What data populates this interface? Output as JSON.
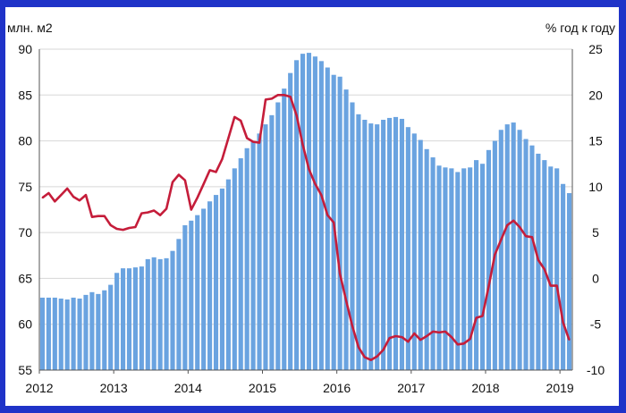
{
  "chart_data": {
    "type": "bar+line",
    "title": "",
    "left_axis_label": "млн. м2",
    "right_axis_label": "% год к году",
    "left_ylim": [
      55,
      90
    ],
    "left_ticks": [
      55,
      60,
      65,
      70,
      75,
      80,
      85,
      90
    ],
    "right_ylim": [
      -10,
      25
    ],
    "right_ticks": [
      -10,
      -5,
      0,
      5,
      10,
      15,
      20,
      25
    ],
    "x_tick_labels": [
      "2012",
      "2013",
      "2014",
      "2015",
      "2016",
      "2017",
      "2018",
      "2019"
    ],
    "grid": "horizontal",
    "legend": "none",
    "series": [
      {
        "type": "bar",
        "axis": "left",
        "color": "#6aa3e0",
        "values": [
          62.9,
          62.9,
          62.9,
          62.8,
          62.7,
          62.9,
          62.8,
          63.2,
          63.5,
          63.3,
          63.7,
          64.3,
          65.6,
          66.1,
          66.1,
          66.2,
          66.3,
          67.1,
          67.3,
          67.1,
          67.2,
          68.0,
          69.3,
          70.8,
          71.3,
          71.9,
          72.6,
          73.4,
          74.1,
          74.8,
          75.8,
          77.0,
          78.1,
          79.2,
          80.0,
          80.8,
          81.8,
          82.8,
          84.2,
          85.7,
          87.4,
          88.8,
          89.5,
          89.6,
          89.2,
          88.7,
          88.0,
          87.2,
          87.0,
          85.6,
          84.2,
          82.9,
          82.3,
          81.9,
          81.8,
          82.3,
          82.5,
          82.6,
          82.4,
          81.5,
          80.8,
          80.1,
          79.1,
          78.2,
          77.3,
          77.1,
          77.0,
          76.6,
          77.0,
          77.1,
          77.9,
          77.5,
          79.0,
          80.0,
          81.2,
          81.8,
          82.0,
          81.2,
          80.2,
          79.5,
          78.6,
          77.9,
          77.2,
          77.0,
          75.3,
          74.3
        ]
      },
      {
        "type": "line",
        "axis": "right",
        "color": "#c51d3a",
        "values": [
          8.8,
          9.3,
          8.4,
          9.1,
          9.8,
          8.9,
          8.5,
          9.1,
          6.7,
          6.8,
          6.8,
          5.8,
          5.4,
          5.3,
          5.5,
          5.6,
          7.1,
          7.2,
          7.4,
          6.9,
          7.6,
          10.5,
          11.3,
          10.7,
          7.5,
          8.8,
          10.3,
          11.8,
          11.6,
          13.0,
          15.3,
          17.6,
          17.2,
          15.3,
          14.9,
          14.8,
          19.5,
          19.6,
          20.0,
          20.0,
          19.8,
          17.8,
          14.6,
          11.9,
          10.3,
          9.1,
          6.9,
          6.1,
          0.5,
          -2.4,
          -5.2,
          -7.5,
          -8.6,
          -8.9,
          -8.5,
          -7.8,
          -6.5,
          -6.3,
          -6.4,
          -6.9,
          -6.0,
          -6.7,
          -6.3,
          -5.8,
          -5.9,
          -5.8,
          -6.4,
          -7.2,
          -7.1,
          -6.6,
          -4.3,
          -4.1,
          -0.9,
          2.6,
          4.2,
          5.8,
          6.3,
          5.6,
          4.6,
          4.5,
          2.0,
          1.0,
          -0.8,
          -0.8,
          -4.8,
          -6.7
        ]
      }
    ]
  }
}
